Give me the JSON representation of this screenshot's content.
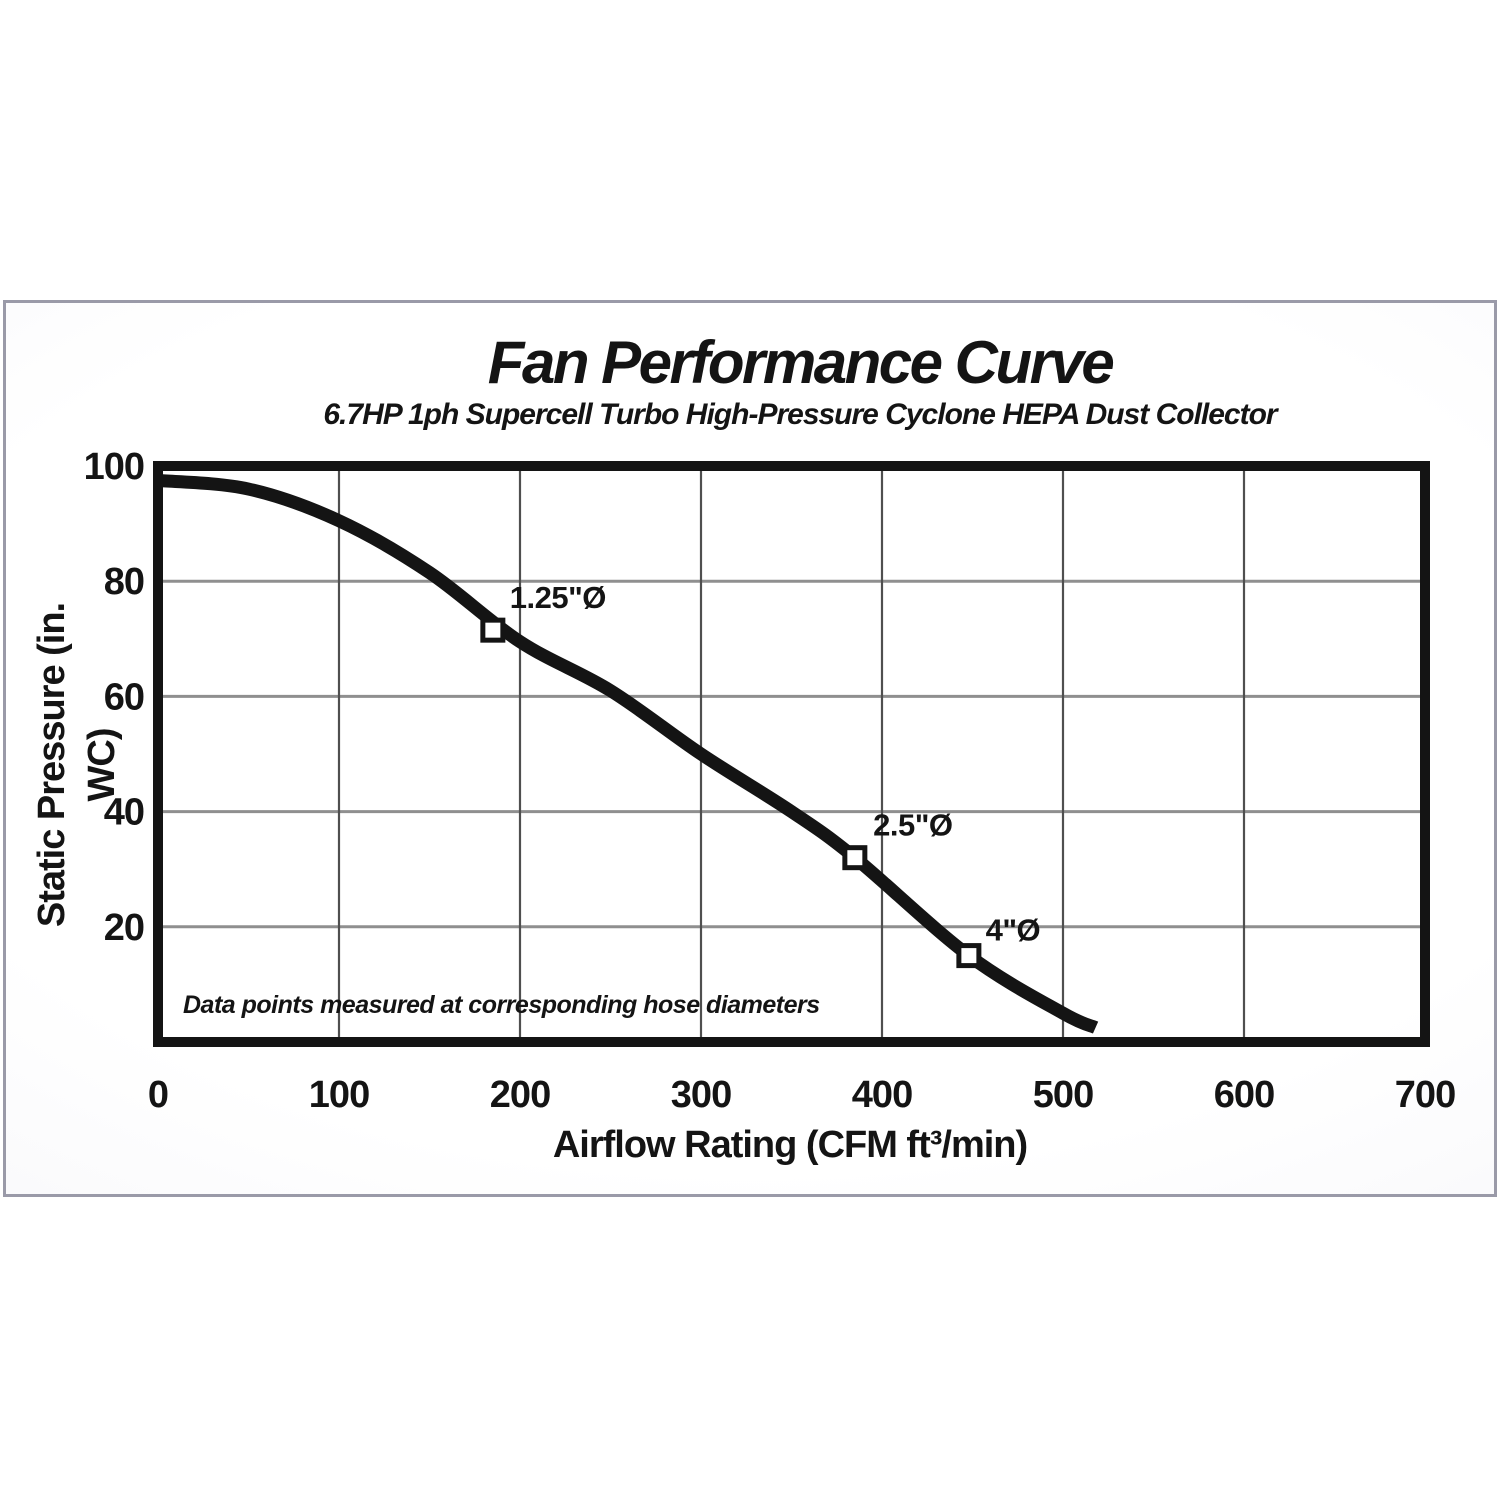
{
  "page": {
    "background": "#ffffff"
  },
  "panel": {
    "border_color": "#9a9aa8"
  },
  "chart_data": {
    "type": "line",
    "title": "Fan Performance Curve",
    "subtitle": "6.7HP 1ph Supercell Turbo High-Pressure Cyclone HEPA Dust Collector",
    "xlabel": "Airflow Rating (CFM ft³/min)",
    "ylabel": "Static Pressure (in. WC)",
    "note": "Data points measured at corresponding hose diameters",
    "xlim": [
      0,
      700
    ],
    "ylim": [
      0,
      100
    ],
    "x_ticks": [
      0,
      100,
      200,
      300,
      400,
      500,
      600,
      700
    ],
    "y_ticks": [
      20,
      40,
      60,
      80,
      100
    ],
    "grid": true,
    "legend_position": "none",
    "series": [
      {
        "name": "fan-performance-curve",
        "points": [
          [
            0,
            97.5
          ],
          [
            50,
            96
          ],
          [
            100,
            90.5
          ],
          [
            150,
            81.5
          ],
          [
            200,
            69.5
          ],
          [
            250,
            61
          ],
          [
            300,
            50
          ],
          [
            350,
            40
          ],
          [
            385,
            32
          ],
          [
            448,
            15
          ],
          [
            500,
            5
          ],
          [
            518,
            2.5
          ]
        ]
      }
    ],
    "data_points": [
      {
        "label": "1.25\"Ø",
        "x": 185,
        "y": 71.5,
        "label_dx": 65,
        "label_dy": -22
      },
      {
        "label": "2.5\"Ø",
        "x": 385,
        "y": 32,
        "label_dx": 58,
        "label_dy": -22
      },
      {
        "label": "4\"Ø",
        "x": 448,
        "y": 15,
        "label_dx": 44,
        "label_dy": -15
      }
    ],
    "colors": {
      "curve": "#141414",
      "frame": "#141414",
      "grid_vertical": "#4f4f4f",
      "grid_horizontal": "#8f8f8f",
      "marker_fill": "#ffffff",
      "marker_stroke": "#141414",
      "text": "#141414"
    }
  }
}
